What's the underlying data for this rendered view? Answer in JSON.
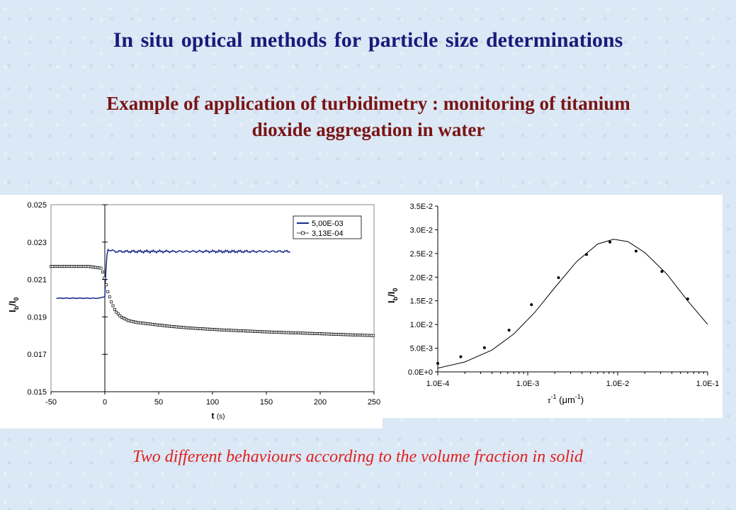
{
  "title": "In situ optical methods for particle size determinations",
  "subtitle_line1": "Example of application of turbidimetry : monitoring of titanium",
  "subtitle_line2": "dioxide aggregation in water",
  "caption": "Two different behaviours according to the volume fraction in solid",
  "colors": {
    "title": "#1a1a7a",
    "subtitle": "#7a1414",
    "caption": "#e02020",
    "series_a": "#1a2a8a",
    "series_b": "#000000"
  },
  "chart_data": [
    {
      "type": "line",
      "xlabel_main": "t",
      "xlabel_unit": "(s)",
      "ylabel_main": "I",
      "ylabel_sub1": "b",
      "ylabel_mid": "/I",
      "ylabel_sub2": "0",
      "xlim": [
        -50,
        250
      ],
      "ylim": [
        0.015,
        0.025
      ],
      "x_ticks": [
        "-50",
        "0",
        "50",
        "100",
        "150",
        "200",
        "250"
      ],
      "y_ticks": [
        "0.015",
        "0.017",
        "0.019",
        "0.021",
        "0.023",
        "0.025"
      ],
      "legend_position": "top-right",
      "series": [
        {
          "name": "5,00E-03",
          "marker": "line",
          "points": [
            [
              -45,
              0.02
            ],
            [
              -30,
              0.02
            ],
            [
              -15,
              0.02
            ],
            [
              -5,
              0.02
            ],
            [
              0,
              0.0201
            ],
            [
              1,
              0.0215
            ],
            [
              2,
              0.0223
            ],
            [
              3,
              0.0226
            ],
            [
              10,
              0.0225
            ],
            [
              30,
              0.0225
            ],
            [
              60,
              0.0225
            ],
            [
              90,
              0.0225
            ],
            [
              120,
              0.0225
            ],
            [
              150,
              0.0225
            ],
            [
              172,
              0.0225
            ]
          ]
        },
        {
          "name": "3,13E-04",
          "marker": "square",
          "points": [
            [
              -50,
              0.0217
            ],
            [
              -30,
              0.0217
            ],
            [
              -15,
              0.0217
            ],
            [
              -3,
              0.0216
            ],
            [
              0,
              0.021
            ],
            [
              3,
              0.0203
            ],
            [
              6,
              0.0198
            ],
            [
              10,
              0.0193
            ],
            [
              15,
              0.019
            ],
            [
              22,
              0.0188
            ],
            [
              30,
              0.0187
            ],
            [
              45,
              0.0186
            ],
            [
              60,
              0.0185
            ],
            [
              80,
              0.0184
            ],
            [
              110,
              0.0183
            ],
            [
              150,
              0.0182
            ],
            [
              200,
              0.0181
            ],
            [
              250,
              0.018
            ]
          ]
        }
      ]
    },
    {
      "type": "scatter",
      "xscale": "log",
      "xlabel_main": "τ",
      "xlabel_sup": "-1",
      "xlabel_unit": "(μm",
      "xlabel_unit_sup": "-1",
      "xlabel_close": ")",
      "ylabel_main": "I",
      "ylabel_sub1": "b",
      "ylabel_mid": "/I",
      "ylabel_sub2": "0",
      "xlim": [
        0.0001,
        0.1
      ],
      "ylim": [
        0,
        0.035
      ],
      "x_ticks": [
        "1.0E-4",
        "1.0E-3",
        "1.0E-2",
        "1.0E-1"
      ],
      "y_ticks": [
        "0.0E+0",
        "5.0E-3",
        "1.0E-2",
        "1.5E-2",
        "2.0E-2",
        "2.5E-2",
        "3.0E-2",
        "3.5E-2"
      ],
      "points": [
        [
          0.0001,
          0.0018
        ],
        [
          0.00018,
          0.0032
        ],
        [
          0.00033,
          0.0051
        ],
        [
          0.00062,
          0.0088
        ],
        [
          0.0011,
          0.0142
        ],
        [
          0.0022,
          0.0199
        ],
        [
          0.0045,
          0.0248
        ],
        [
          0.0082,
          0.0274
        ],
        [
          0.016,
          0.0255
        ],
        [
          0.031,
          0.0212
        ],
        [
          0.06,
          0.0154
        ]
      ],
      "fit_curve": [
        [
          0.0001,
          0.0008
        ],
        [
          0.0002,
          0.0021
        ],
        [
          0.0004,
          0.0046
        ],
        [
          0.0007,
          0.008
        ],
        [
          0.0012,
          0.0126
        ],
        [
          0.002,
          0.0178
        ],
        [
          0.0035,
          0.0233
        ],
        [
          0.006,
          0.027
        ],
        [
          0.009,
          0.028
        ],
        [
          0.013,
          0.0275
        ],
        [
          0.02,
          0.0252
        ],
        [
          0.035,
          0.0207
        ],
        [
          0.06,
          0.015
        ],
        [
          0.1,
          0.01
        ]
      ]
    }
  ]
}
